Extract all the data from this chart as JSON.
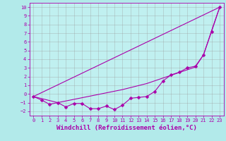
{
  "xlabel": "Windchill (Refroidissement éolien,°C)",
  "background_color": "#b2eaea",
  "plot_bg_color": "#c0f0f0",
  "line_color": "#aa00aa",
  "xlim": [
    -0.5,
    23.5
  ],
  "ylim": [
    -2.5,
    10.5
  ],
  "yticks": [
    -2,
    -1,
    0,
    1,
    2,
    3,
    4,
    5,
    6,
    7,
    8,
    9,
    10
  ],
  "xticks": [
    0,
    1,
    2,
    3,
    4,
    5,
    6,
    7,
    8,
    9,
    10,
    11,
    12,
    13,
    14,
    15,
    16,
    17,
    18,
    19,
    20,
    21,
    22,
    23
  ],
  "line1_x": [
    0,
    1,
    2,
    3,
    4,
    5,
    6,
    7,
    8,
    9,
    10,
    11,
    12,
    13,
    14,
    15,
    16,
    17,
    18,
    19,
    20,
    21,
    22,
    23
  ],
  "line1_y": [
    -0.3,
    -0.7,
    -1.2,
    -1.0,
    -1.5,
    -1.1,
    -1.1,
    -1.7,
    -1.7,
    -1.4,
    -1.8,
    -1.3,
    -0.5,
    -0.4,
    -0.3,
    0.3,
    1.5,
    2.2,
    2.5,
    3.0,
    3.2,
    4.5,
    7.2,
    10.0
  ],
  "line2_x": [
    0,
    23
  ],
  "line2_y": [
    -0.3,
    10.0
  ],
  "line3_x": [
    0,
    3,
    11,
    14,
    20,
    21,
    22,
    23
  ],
  "line3_y": [
    -0.3,
    -1.0,
    0.5,
    1.2,
    3.1,
    4.5,
    7.3,
    10.0
  ],
  "grid_color": "#999999",
  "font_color": "#aa00aa",
  "tick_fontsize": 5.0,
  "xlabel_fontsize": 6.5,
  "marker_size": 2.5,
  "lw": 0.8
}
